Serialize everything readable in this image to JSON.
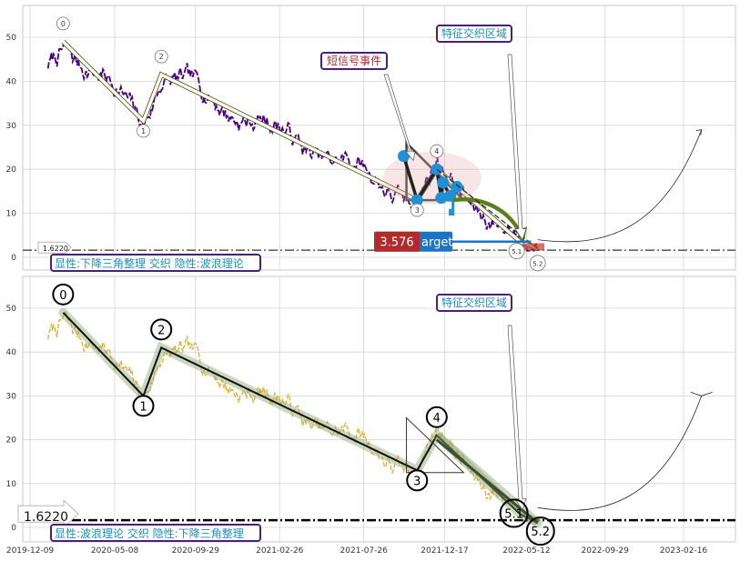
{
  "chart_data": [
    {
      "type": "line",
      "panel": "top",
      "title": "",
      "ylim": [
        -2,
        57
      ],
      "y_ticks": [
        0,
        10,
        20,
        30,
        40,
        50
      ],
      "grid": true,
      "threshold": {
        "value": 1.622,
        "label": "1.6220"
      },
      "wave_points": [
        {
          "label": "0",
          "x": "2020-02-06",
          "y": 49
        },
        {
          "label": "1",
          "x": "2020-06-28",
          "y": 31
        },
        {
          "label": "2",
          "x": "2020-07-30",
          "y": 41.5
        },
        {
          "label": "3",
          "x": "2021-10-29",
          "y": 13
        },
        {
          "label": "4",
          "x": "2021-12-03",
          "y": 20
        },
        {
          "label": "5.1",
          "x": "2022-05-01",
          "y": 3.5
        },
        {
          "label": "5.2",
          "x": "2022-06-01",
          "y": 2
        }
      ],
      "annotations": {
        "short_signal": "短信号事件",
        "feature_zone": "特征交织区域",
        "target_value": "3.576",
        "target_text": "arget",
        "pattern_note": "显性:下降三角整理 交织 隐性:波浪理论"
      },
      "series_color": "#4b0082"
    },
    {
      "type": "line",
      "panel": "bottom",
      "title": "",
      "ylim": [
        -2,
        57
      ],
      "y_ticks": [
        0,
        10,
        20,
        30,
        40,
        50
      ],
      "grid": true,
      "threshold": {
        "value": 1.622,
        "label": "1.6220"
      },
      "x_ticks": [
        "2019-12-09",
        "2020-05-08",
        "2020-09-29",
        "2021-02-26",
        "2021-07-26",
        "2021-12-17",
        "2022-05-12",
        "2022-09-29",
        "2023-02-16"
      ],
      "wave_points": [
        {
          "label": "0",
          "x": "2020-02-06",
          "y": 49
        },
        {
          "label": "1",
          "x": "2020-06-28",
          "y": 30
        },
        {
          "label": "2",
          "x": "2020-07-30",
          "y": 41
        },
        {
          "label": "3",
          "x": "2021-10-29",
          "y": 13
        },
        {
          "label": "4",
          "x": "2021-12-03",
          "y": 21
        },
        {
          "label": "5.1",
          "x": "2022-05-01",
          "y": 3
        },
        {
          "label": "5.2",
          "x": "2022-06-01",
          "y": 1
        }
      ],
      "annotations": {
        "feature_zone": "特征交织区域",
        "pattern_note": "显性:波浪理论 交织 隐性:下降三角整理"
      },
      "series_color": "#e8a92a"
    }
  ]
}
